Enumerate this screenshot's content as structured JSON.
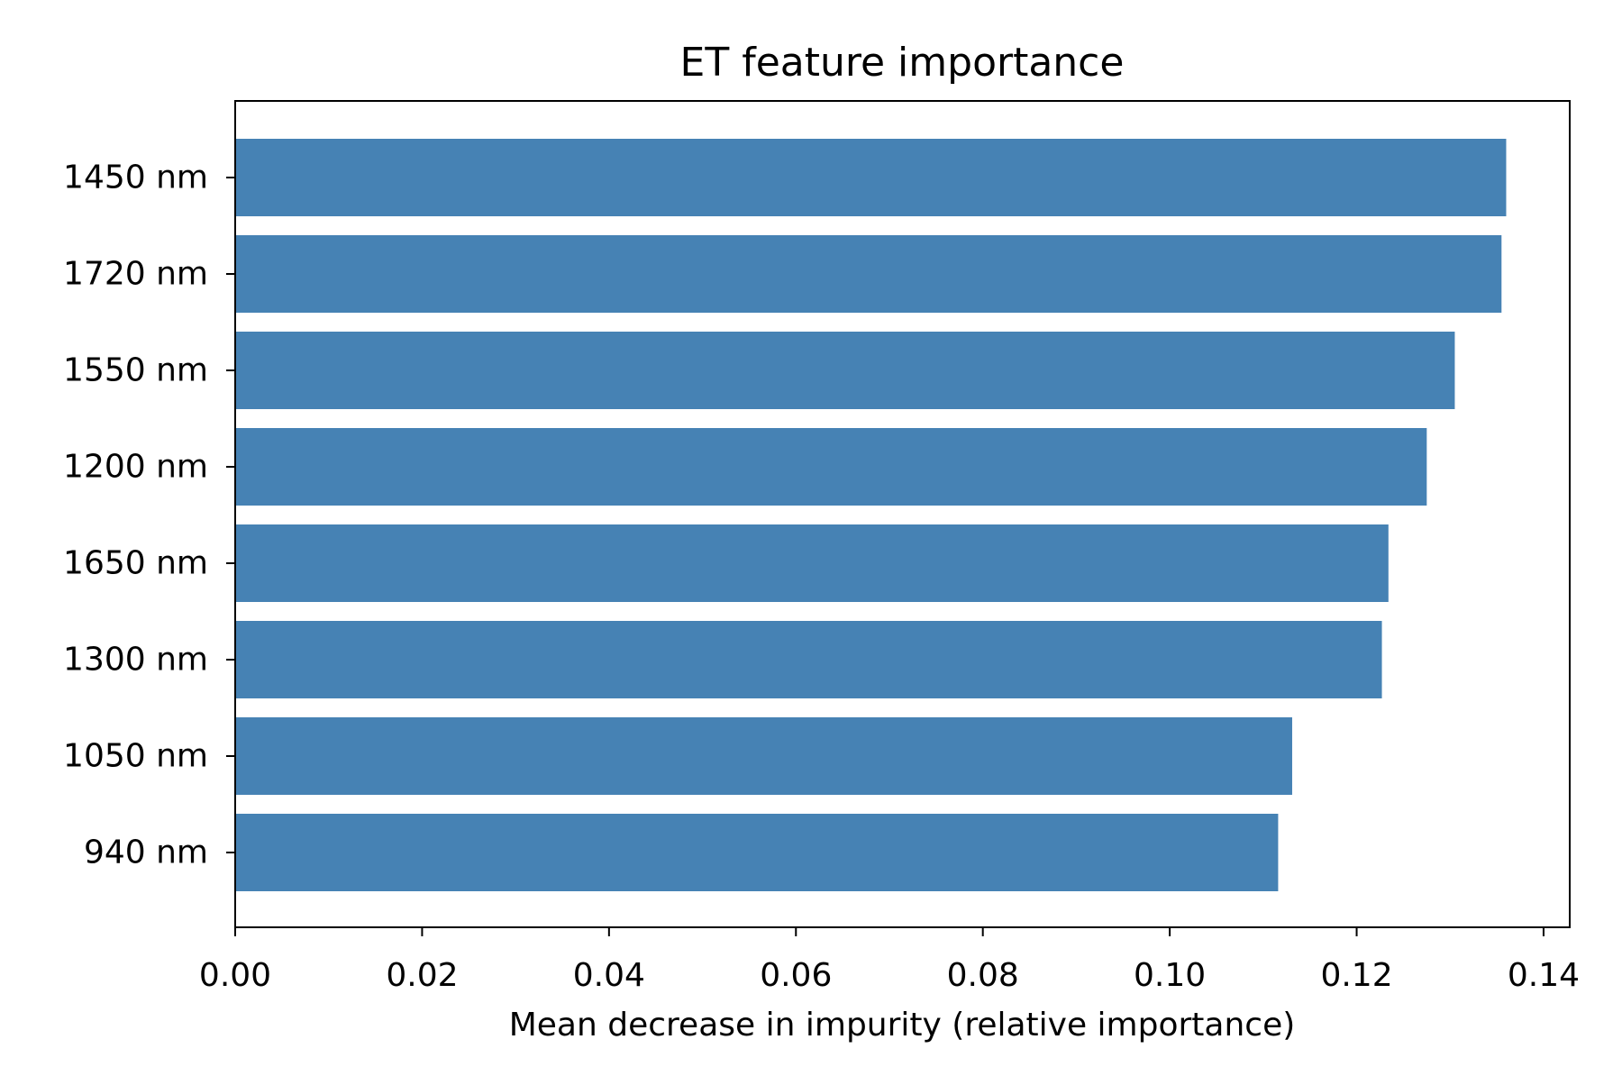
{
  "chart_data": {
    "type": "bar",
    "orientation": "horizontal",
    "title": "ET feature importance",
    "xlabel": "Mean decrease in impurity (relative importance)",
    "ylabel": "",
    "categories": [
      "1450 nm",
      "1720 nm",
      "1550 nm",
      "1200 nm",
      "1650 nm",
      "1300 nm",
      "1050 nm",
      "940 nm"
    ],
    "values": [
      0.136,
      0.1355,
      0.1305,
      0.1275,
      0.1234,
      0.1227,
      0.1131,
      0.1116
    ],
    "xlim": [
      0,
      0.1428
    ],
    "xticks": [
      "0.00",
      "0.02",
      "0.04",
      "0.06",
      "0.08",
      "0.10",
      "0.12",
      "0.14"
    ],
    "grid": false,
    "legend": "none",
    "bar_color": "#4682b4"
  }
}
